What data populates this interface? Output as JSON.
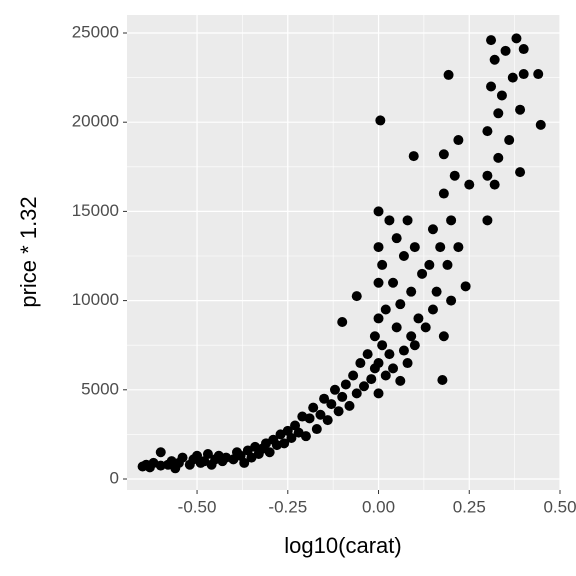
{
  "chart_data": {
    "type": "scatter",
    "x_label": "log10(carat)",
    "y_label": "price * 1.32",
    "color": "#000000",
    "grid": true,
    "x": [
      -0.65,
      -0.64,
      -0.63,
      -0.62,
      -0.6,
      -0.6,
      -0.58,
      -0.57,
      -0.56,
      -0.55,
      -0.54,
      -0.52,
      -0.51,
      -0.5,
      -0.49,
      -0.48,
      -0.47,
      -0.46,
      -0.45,
      -0.44,
      -0.43,
      -0.42,
      -0.4,
      -0.39,
      -0.38,
      -0.37,
      -0.36,
      -0.35,
      -0.34,
      -0.33,
      -0.32,
      -0.31,
      -0.3,
      -0.29,
      -0.28,
      -0.27,
      -0.26,
      -0.25,
      -0.24,
      -0.23,
      -0.22,
      -0.21,
      -0.2,
      -0.19,
      -0.18,
      -0.17,
      -0.16,
      -0.15,
      -0.14,
      -0.13,
      -0.12,
      -0.11,
      -0.1,
      -0.1,
      -0.09,
      -0.08,
      -0.07,
      -0.06,
      -0.06,
      -0.05,
      -0.04,
      -0.03,
      -0.02,
      -0.01,
      -0.01,
      0,
      0,
      0,
      0,
      0,
      0,
      0.005,
      0.01,
      0.01,
      0.02,
      0.02,
      0.03,
      0.03,
      0.04,
      0.04,
      0.05,
      0.05,
      0.06,
      0.06,
      0.07,
      0.07,
      0.08,
      0.08,
      0.09,
      0.09,
      0.097,
      0.1,
      0.1,
      0.11,
      0.12,
      0.13,
      0.14,
      0.15,
      0.15,
      0.16,
      0.17,
      0.176,
      0.18,
      0.18,
      0.18,
      0.19,
      0.193,
      0.2,
      0.2,
      0.21,
      0.22,
      0.22,
      0.24,
      0.25,
      0.3,
      0.3,
      0.3,
      0.31,
      0.31,
      0.32,
      0.32,
      0.33,
      0.33,
      0.34,
      0.35,
      0.36,
      0.37,
      0.38,
      0.39,
      0.39,
      0.4,
      0.4,
      0.44,
      0.447
    ],
    "values": [
      700,
      800,
      650,
      900,
      750,
      1500,
      800,
      1000,
      600,
      900,
      1200,
      800,
      1100,
      1300,
      900,
      1000,
      1400,
      800,
      1100,
      1300,
      1000,
      1200,
      1100,
      1500,
      1300,
      900,
      1600,
      1200,
      1800,
      1400,
      1700,
      2000,
      1500,
      2200,
      1900,
      2500,
      2000,
      2700,
      2300,
      3000,
      2600,
      3500,
      2400,
      3400,
      4000,
      2800,
      3600,
      4500,
      3300,
      4200,
      5000,
      3800,
      4600,
      8800,
      5300,
      4100,
      5800,
      4800,
      10250,
      6500,
      5200,
      7000,
      5600,
      6200,
      8000,
      4800,
      6500,
      9000,
      11000,
      13000,
      15000,
      20100,
      7500,
      12000,
      5800,
      9500,
      14500,
      7000,
      6200,
      11000,
      8500,
      13500,
      5500,
      9800,
      7200,
      12500,
      6500,
      14500,
      8000,
      10500,
      18100,
      7500,
      13000,
      9000,
      11500,
      8500,
      12000,
      9500,
      14000,
      10500,
      13000,
      5550,
      8000,
      16000,
      18200,
      12000,
      22650,
      14500,
      10000,
      17000,
      13000,
      19000,
      10800,
      16500,
      14500,
      17000,
      19500,
      22000,
      24600,
      16500,
      23500,
      20500,
      18000,
      21500,
      24000,
      19000,
      22500,
      24700,
      17200,
      20700,
      24100,
      22700,
      22700,
      19850
    ],
    "xlim": [
      -0.693,
      0.5
    ],
    "xticks": [
      {
        "value": -0.5,
        "label": "-0.50"
      },
      {
        "value": -0.25,
        "label": "-0.25"
      },
      {
        "value": 0,
        "label": "0.00"
      },
      {
        "value": 0.25,
        "label": "0.25"
      },
      {
        "value": 0.5,
        "label": "0.50"
      }
    ],
    "ylim": [
      -617,
      26009
    ],
    "yticks": [
      0,
      5000,
      10000,
      15000,
      20000,
      25000
    ]
  }
}
